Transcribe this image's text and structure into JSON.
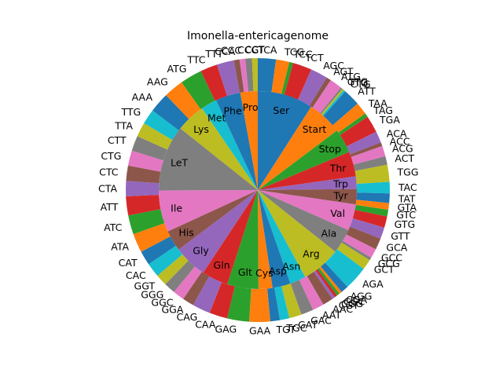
{
  "chart_data": {
    "type": "pie",
    "subtype": "nested-donut",
    "title": "Imonella-entericagenome",
    "start_angle_deg": 90,
    "direction": "clockwise",
    "palette": [
      "#1f77b4",
      "#ff7f0e",
      "#2ca02c",
      "#d62728",
      "#9467bd",
      "#8c564b",
      "#e377c2",
      "#7f7f7f",
      "#bcbd22",
      "#17becf"
    ],
    "inner_ring": [
      {
        "label": "Ser",
        "value": 8.0
      },
      {
        "label": "Start",
        "value": 5.0
      },
      {
        "label": "Stop",
        "value": 3.5
      },
      {
        "label": "Thr",
        "value": 3.6
      },
      {
        "label": "Trp",
        "value": 1.8
      },
      {
        "label": "Tyr",
        "value": 2.2
      },
      {
        "label": "Val",
        "value": 3.8
      },
      {
        "label": "Ala",
        "value": 3.6
      },
      {
        "label": "Arg",
        "value": 5.6
      },
      {
        "label": "Asn",
        "value": 2.3
      },
      {
        "label": "Asp",
        "value": 2.6
      },
      {
        "label": "Cys",
        "value": 2.0
      },
      {
        "label": "Glt",
        "value": 4.5
      },
      {
        "label": "Gln",
        "value": 3.8
      },
      {
        "label": "Gly",
        "value": 4.8
      },
      {
        "label": "His",
        "value": 3.0
      },
      {
        "label": "Ile",
        "value": 6.0
      },
      {
        "label": "LeT",
        "value": 9.5
      },
      {
        "label": "Lys",
        "value": 4.2
      },
      {
        "label": "Met",
        "value": 2.3
      },
      {
        "label": "Phe",
        "value": 3.6
      },
      {
        "label": "Pro",
        "value": 2.5
      }
    ],
    "outer_ring": [
      {
        "label": "TCA",
        "value": 1.9
      },
      {
        "label": "TCG",
        "value": 1.4
      },
      {
        "label": "TCC",
        "value": 0.4
      },
      {
        "label": "TCT",
        "value": 2.0
      },
      {
        "label": "AGC",
        "value": 1.8
      },
      {
        "label": "AGT",
        "value": 0.5
      },
      {
        "label": "ATG",
        "value": 1.3
      },
      {
        "label": "GTG",
        "value": 0.2
      },
      {
        "label": "TTG",
        "value": 0.2
      },
      {
        "label": "CTG",
        "value": 0.2
      },
      {
        "label": "ATT",
        "value": 1.8
      },
      {
        "label": "TAA",
        "value": 1.3
      },
      {
        "label": "TAG",
        "value": 0.4
      },
      {
        "label": "TGA",
        "value": 1.8
      },
      {
        "label": "ACA",
        "value": 1.2
      },
      {
        "label": "ACC",
        "value": 0.4
      },
      {
        "label": "ACG",
        "value": 1.1
      },
      {
        "label": "ACT",
        "value": 0.9
      },
      {
        "label": "TGG",
        "value": 1.8
      },
      {
        "label": "TAC",
        "value": 1.2
      },
      {
        "label": "TAT",
        "value": 1.0
      },
      {
        "label": "GTA",
        "value": 0.7
      },
      {
        "label": "GTC",
        "value": 0.7
      },
      {
        "label": "GTG",
        "value": 1.2
      },
      {
        "label": "GTT",
        "value": 1.2
      },
      {
        "label": "GCA",
        "value": 1.2
      },
      {
        "label": "GCC",
        "value": 1.0
      },
      {
        "label": "GCG",
        "value": 0.3
      },
      {
        "label": "GCT",
        "value": 1.1
      },
      {
        "label": "AGA",
        "value": 2.5
      },
      {
        "label": "AGG",
        "value": 0.8
      },
      {
        "label": "CGA",
        "value": 0.3
      },
      {
        "label": "CGC",
        "value": 0.3
      },
      {
        "label": "CGG",
        "value": 0.3
      },
      {
        "label": "CGT",
        "value": 0.3
      },
      {
        "label": "AAC",
        "value": 1.1
      },
      {
        "label": "AAT",
        "value": 1.2
      },
      {
        "label": "GAC",
        "value": 1.3
      },
      {
        "label": "GAT",
        "value": 1.3
      },
      {
        "label": "TGC",
        "value": 1.0
      },
      {
        "label": "TGT",
        "value": 1.0
      },
      {
        "label": "GAA",
        "value": 2.2
      },
      {
        "label": "GAG",
        "value": 2.3
      },
      {
        "label": "CAA",
        "value": 1.9
      },
      {
        "label": "CAG",
        "value": 1.9
      },
      {
        "label": "GGA",
        "value": 1.2
      },
      {
        "label": "GGC",
        "value": 1.2
      },
      {
        "label": "GGG",
        "value": 1.2
      },
      {
        "label": "GGT",
        "value": 1.2
      },
      {
        "label": "CAC",
        "value": 1.5
      },
      {
        "label": "CAT",
        "value": 1.5
      },
      {
        "label": "ATA",
        "value": 2.0
      },
      {
        "label": "ATC",
        "value": 2.0
      },
      {
        "label": "ATT",
        "value": 2.0
      },
      {
        "label": "CTA",
        "value": 1.6
      },
      {
        "label": "CTC",
        "value": 1.6
      },
      {
        "label": "CTG",
        "value": 1.6
      },
      {
        "label": "CTT",
        "value": 1.6
      },
      {
        "label": "TTA",
        "value": 1.5
      },
      {
        "label": "TTG",
        "value": 1.6
      },
      {
        "label": "AAA",
        "value": 2.1
      },
      {
        "label": "AAG",
        "value": 2.1
      },
      {
        "label": "ATG",
        "value": 2.3
      },
      {
        "label": "TTC",
        "value": 1.8
      },
      {
        "label": "TTT",
        "value": 1.8
      },
      {
        "label": "CCA",
        "value": 0.6
      },
      {
        "label": "CCC",
        "value": 0.6
      },
      {
        "label": "CCG",
        "value": 0.7
      },
      {
        "label": "CCT",
        "value": 0.6
      }
    ]
  }
}
